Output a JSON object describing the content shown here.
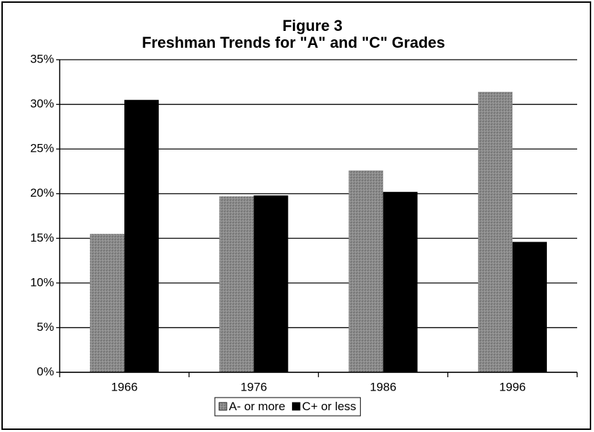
{
  "chart_data": {
    "type": "bar",
    "title": "Figure 3",
    "subtitle": "Freshman Trends for \"A\" and \"C\" Grades",
    "categories": [
      "1966",
      "1976",
      "1986",
      "1996"
    ],
    "series": [
      {
        "name": "A- or more",
        "color": "#8c8c8c",
        "values": [
          15.5,
          19.7,
          22.6,
          31.4
        ]
      },
      {
        "name": "C+ or less",
        "color": "#000000",
        "values": [
          30.5,
          19.8,
          20.2,
          14.6
        ]
      }
    ],
    "ylim": [
      0,
      35
    ],
    "yticks": [
      {
        "value": 0,
        "label": "0%"
      },
      {
        "value": 5,
        "label": "5%"
      },
      {
        "value": 10,
        "label": "10%"
      },
      {
        "value": 15,
        "label": "15%"
      },
      {
        "value": 20,
        "label": "20%"
      },
      {
        "value": 25,
        "label": "25%"
      },
      {
        "value": 30,
        "label": "30%"
      },
      {
        "value": 35,
        "label": "35%"
      }
    ],
    "grid": true,
    "legend": "bottom"
  }
}
